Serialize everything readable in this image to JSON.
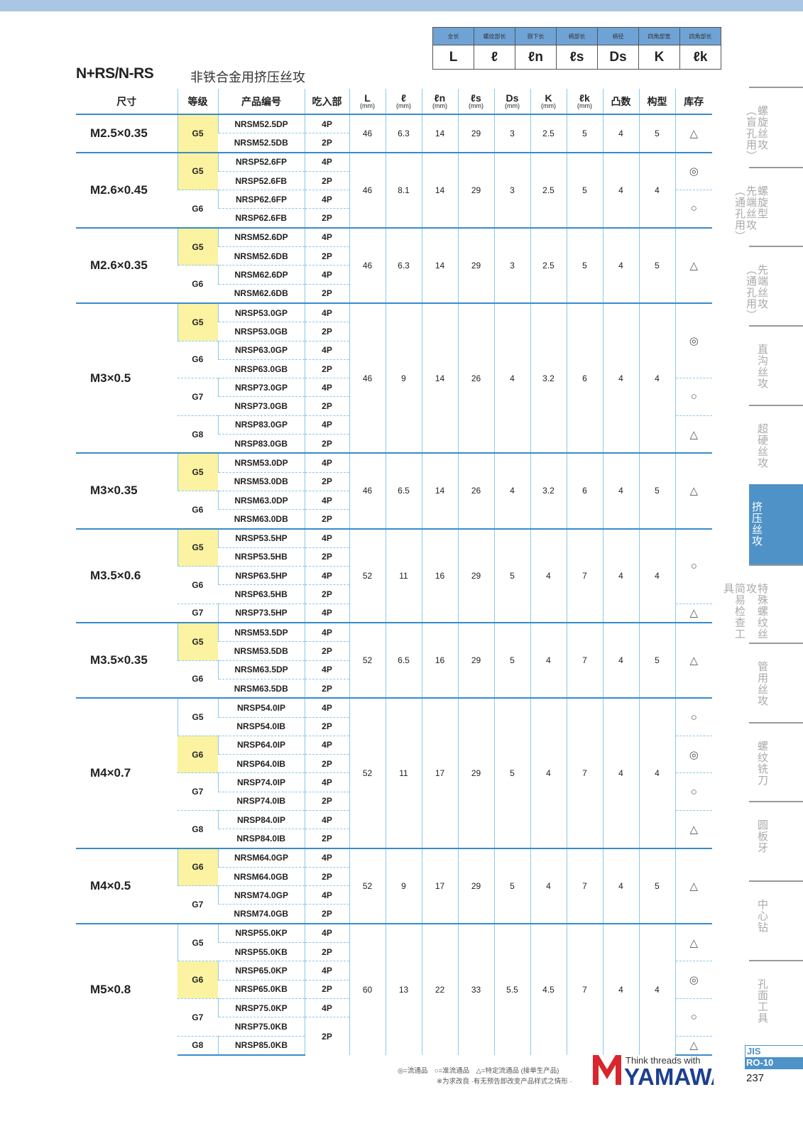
{
  "header": {
    "title": "N+RS/N-RS",
    "subtitle": "非铁合金用挤压丝攻"
  },
  "legend": [
    {
      "label": "全长",
      "symbol": "L"
    },
    {
      "label": "螺纹部长",
      "symbol": "ℓ"
    },
    {
      "label": "颈下长",
      "symbol": "ℓn"
    },
    {
      "label": "柄部长",
      "symbol": "ℓs"
    },
    {
      "label": "柄径",
      "symbol": "Ds"
    },
    {
      "label": "四角部宽",
      "symbol": "K"
    },
    {
      "label": "四角部长",
      "symbol": "ℓk"
    }
  ],
  "columns": [
    {
      "label": "尺寸"
    },
    {
      "label": "等级"
    },
    {
      "label": "产品编号"
    },
    {
      "label": "吃入部"
    },
    {
      "label": "L",
      "unit": "(mm)"
    },
    {
      "label": "ℓ",
      "unit": "(mm)"
    },
    {
      "label": "ℓn",
      "unit": "(mm)"
    },
    {
      "label": "ℓs",
      "unit": "(mm)"
    },
    {
      "label": "Ds",
      "unit": "(mm)"
    },
    {
      "label": "K",
      "unit": "(mm)"
    },
    {
      "label": "ℓk",
      "unit": "(mm)"
    },
    {
      "label": "凸数"
    },
    {
      "label": "构型"
    },
    {
      "label": "库存"
    }
  ],
  "groups": [
    {
      "size": "M2.5×0.35",
      "vals": [
        "46",
        "6.3",
        "14",
        "29",
        "3",
        "2.5",
        "5",
        "4",
        "5"
      ],
      "codes": [
        "NRSM52.5DP",
        "NRSM52.5DB"
      ],
      "grades": [
        {
          "g": "G5",
          "span": 2,
          "hl": true
        }
      ],
      "chamfer": [
        {
          "v": "4P",
          "span": 1
        },
        {
          "v": "2P",
          "span": 1
        }
      ],
      "stock": [
        {
          "v": "△",
          "span": 2
        }
      ]
    },
    {
      "size": "M2.6×0.45",
      "vals": [
        "46",
        "8.1",
        "14",
        "29",
        "3",
        "2.5",
        "5",
        "4",
        "4"
      ],
      "codes": [
        "NRSP52.6FP",
        "NRSP52.6FB",
        "NRSP62.6FP",
        "NRSP62.6FB"
      ],
      "grades": [
        {
          "g": "G5",
          "span": 2,
          "hl": true
        },
        {
          "g": "G6",
          "span": 2
        }
      ],
      "chamfer": [
        {
          "v": "4P",
          "span": 1
        },
        {
          "v": "2P",
          "span": 1
        },
        {
          "v": "4P",
          "span": 1
        },
        {
          "v": "2P",
          "span": 1
        }
      ],
      "stock": [
        {
          "v": "◎",
          "span": 2
        },
        {
          "v": "○",
          "span": 2
        }
      ]
    },
    {
      "size": "M2.6×0.35",
      "vals": [
        "46",
        "6.3",
        "14",
        "29",
        "3",
        "2.5",
        "5",
        "4",
        "5"
      ],
      "codes": [
        "NRSM52.6DP",
        "NRSM52.6DB",
        "NRSM62.6DP",
        "NRSM62.6DB"
      ],
      "grades": [
        {
          "g": "G5",
          "span": 2,
          "hl": true
        },
        {
          "g": "G6",
          "span": 2
        }
      ],
      "chamfer": [
        {
          "v": "4P",
          "span": 1
        },
        {
          "v": "2P",
          "span": 1
        },
        {
          "v": "4P",
          "span": 1
        },
        {
          "v": "2P",
          "span": 1
        }
      ],
      "stock": [
        {
          "v": "△",
          "span": 4
        }
      ]
    },
    {
      "size": "M3×0.5",
      "vals": [
        "46",
        "9",
        "14",
        "26",
        "4",
        "3.2",
        "6",
        "4",
        "4"
      ],
      "codes": [
        "NRSP53.0GP",
        "NRSP53.0GB",
        "NRSP63.0GP",
        "NRSP63.0GB",
        "NRSP73.0GP",
        "NRSP73.0GB",
        "NRSP83.0GP",
        "NRSP83.0GB"
      ],
      "grades": [
        {
          "g": "G5",
          "span": 2,
          "hl": true
        },
        {
          "g": "G6",
          "span": 2
        },
        {
          "g": "G7",
          "span": 2
        },
        {
          "g": "G8",
          "span": 2
        }
      ],
      "chamfer": [
        {
          "v": "4P",
          "span": 1
        },
        {
          "v": "2P",
          "span": 1
        },
        {
          "v": "4P",
          "span": 1
        },
        {
          "v": "2P",
          "span": 1
        },
        {
          "v": "4P",
          "span": 1
        },
        {
          "v": "2P",
          "span": 1
        },
        {
          "v": "4P",
          "span": 1
        },
        {
          "v": "2P",
          "span": 1
        }
      ],
      "stock": [
        {
          "v": "◎",
          "span": 4
        },
        {
          "v": "○",
          "span": 2
        },
        {
          "v": "△",
          "span": 2
        }
      ]
    },
    {
      "size": "M3×0.35",
      "vals": [
        "46",
        "6.5",
        "14",
        "26",
        "4",
        "3.2",
        "6",
        "4",
        "5"
      ],
      "codes": [
        "NRSM53.0DP",
        "NRSM53.0DB",
        "NRSM63.0DP",
        "NRSM63.0DB"
      ],
      "grades": [
        {
          "g": "G5",
          "span": 2,
          "hl": true
        },
        {
          "g": "G6",
          "span": 2
        }
      ],
      "chamfer": [
        {
          "v": "4P",
          "span": 1
        },
        {
          "v": "2P",
          "span": 1
        },
        {
          "v": "4P",
          "span": 1
        },
        {
          "v": "2P",
          "span": 1
        }
      ],
      "stock": [
        {
          "v": "△",
          "span": 4
        }
      ]
    },
    {
      "size": "M3.5×0.6",
      "vals": [
        "52",
        "11",
        "16",
        "29",
        "5",
        "4",
        "7",
        "4",
        "4"
      ],
      "codes": [
        "NRSP53.5HP",
        "NRSP53.5HB",
        "NRSP63.5HP",
        "NRSP63.5HB",
        "NRSP73.5HP"
      ],
      "grades": [
        {
          "g": "G5",
          "span": 2,
          "hl": true
        },
        {
          "g": "G6",
          "span": 2
        },
        {
          "g": "G7",
          "span": 1
        }
      ],
      "chamfer": [
        {
          "v": "4P",
          "span": 1
        },
        {
          "v": "2P",
          "span": 1
        },
        {
          "v": "4P",
          "span": 1
        },
        {
          "v": "2P",
          "span": 1
        },
        {
          "v": "4P",
          "span": 1
        }
      ],
      "stock": [
        {
          "v": "○",
          "span": 4
        },
        {
          "v": "△",
          "span": 1
        }
      ]
    },
    {
      "size": "M3.5×0.35",
      "vals": [
        "52",
        "6.5",
        "16",
        "29",
        "5",
        "4",
        "7",
        "4",
        "5"
      ],
      "codes": [
        "NRSM53.5DP",
        "NRSM53.5DB",
        "NRSM63.5DP",
        "NRSM63.5DB"
      ],
      "grades": [
        {
          "g": "G5",
          "span": 2,
          "hl": true
        },
        {
          "g": "G6",
          "span": 2
        }
      ],
      "chamfer": [
        {
          "v": "4P",
          "span": 1
        },
        {
          "v": "2P",
          "span": 1
        },
        {
          "v": "4P",
          "span": 1
        },
        {
          "v": "2P",
          "span": 1
        }
      ],
      "stock": [
        {
          "v": "△",
          "span": 4
        }
      ]
    },
    {
      "size": "M4×0.7",
      "vals": [
        "52",
        "11",
        "17",
        "29",
        "5",
        "4",
        "7",
        "4",
        "4"
      ],
      "codes": [
        "NRSP54.0IP",
        "NRSP54.0IB",
        "NRSP64.0IP",
        "NRSP64.0IB",
        "NRSP74.0IP",
        "NRSP74.0IB",
        "NRSP84.0IP",
        "NRSP84.0IB"
      ],
      "grades": [
        {
          "g": "G5",
          "span": 2
        },
        {
          "g": "G6",
          "span": 2,
          "hl": true
        },
        {
          "g": "G7",
          "span": 2
        },
        {
          "g": "G8",
          "span": 2
        }
      ],
      "chamfer": [
        {
          "v": "4P",
          "span": 1
        },
        {
          "v": "2P",
          "span": 1
        },
        {
          "v": "4P",
          "span": 1
        },
        {
          "v": "2P",
          "span": 1
        },
        {
          "v": "4P",
          "span": 1
        },
        {
          "v": "2P",
          "span": 1
        },
        {
          "v": "4P",
          "span": 1
        },
        {
          "v": "2P",
          "span": 1
        }
      ],
      "stock": [
        {
          "v": "○",
          "span": 2
        },
        {
          "v": "◎",
          "span": 2
        },
        {
          "v": "○",
          "span": 2
        },
        {
          "v": "△",
          "span": 2
        }
      ]
    },
    {
      "size": "M4×0.5",
      "vals": [
        "52",
        "9",
        "17",
        "29",
        "5",
        "4",
        "7",
        "4",
        "5"
      ],
      "codes": [
        "NRSM64.0GP",
        "NRSM64.0GB",
        "NRSM74.0GP",
        "NRSM74.0GB"
      ],
      "grades": [
        {
          "g": "G6",
          "span": 2,
          "hl": true
        },
        {
          "g": "G7",
          "span": 2
        }
      ],
      "chamfer": [
        {
          "v": "4P",
          "span": 1
        },
        {
          "v": "2P",
          "span": 1
        },
        {
          "v": "4P",
          "span": 1
        },
        {
          "v": "2P",
          "span": 1
        }
      ],
      "stock": [
        {
          "v": "△",
          "span": 4
        }
      ]
    },
    {
      "size": "M5×0.8",
      "vals": [
        "60",
        "13",
        "22",
        "33",
        "5.5",
        "4.5",
        "7",
        "4",
        "4"
      ],
      "codes": [
        "NRSP55.0KP",
        "NRSP55.0KB",
        "NRSP65.0KP",
        "NRSP65.0KB",
        "NRSP75.0KP",
        "NRSP75.0KB",
        "NRSP85.0KB"
      ],
      "grades": [
        {
          "g": "G5",
          "span": 2
        },
        {
          "g": "G6",
          "span": 2,
          "hl": true
        },
        {
          "g": "G7",
          "span": 2
        },
        {
          "g": "G8",
          "span": 1
        }
      ],
      "chamfer": [
        {
          "v": "4P",
          "span": 1
        },
        {
          "v": "2P",
          "span": 1
        },
        {
          "v": "4P",
          "span": 1
        },
        {
          "v": "2P",
          "span": 1
        },
        {
          "v": "4P",
          "span": 1
        },
        {
          "v": "2P",
          "span": 2
        }
      ],
      "stock": [
        {
          "v": "△",
          "span": 2
        },
        {
          "v": "◎",
          "span": 2
        },
        {
          "v": "○",
          "span": 2
        },
        {
          "v": "△",
          "span": 1
        }
      ]
    }
  ],
  "sidebar": [
    {
      "l1": "螺旋丝攻",
      "l2": "（盲孔用）"
    },
    {
      "l1": "螺旋型",
      "l2": "先端丝攻",
      "l3": "（通孔用）"
    },
    {
      "l1": "先端丝攻",
      "l2": "（通孔用）"
    },
    {
      "l1": "直沟丝攻"
    },
    {
      "l1": "超硬丝攻"
    },
    {
      "l1": "挤压丝攻",
      "active": true
    },
    {
      "l1": "特殊螺纹丝攻",
      "l2": "简易检查工具"
    },
    {
      "l1": "管用丝攻"
    },
    {
      "l1": "螺纹铣刀"
    },
    {
      "l1": "圆板牙"
    },
    {
      "l1": "中心钻"
    },
    {
      "l1": "孔面工具"
    }
  ],
  "footer": {
    "legend": "◎=流通品　○=准流通品　△=特定流通品 (接单生产品)",
    "note": "※为求改良 ·有无预告即改变产品样式之情形 ·",
    "slogan": "Think threads with",
    "brand": "YAMAWA",
    "standard": "JIS",
    "code": "RO-10",
    "page": "237"
  },
  "colors": {
    "accent": "#4e92c8",
    "highlight": "#fbf3a1",
    "brand_red": "#d7262e",
    "brand_blue": "#1d3f8f"
  }
}
